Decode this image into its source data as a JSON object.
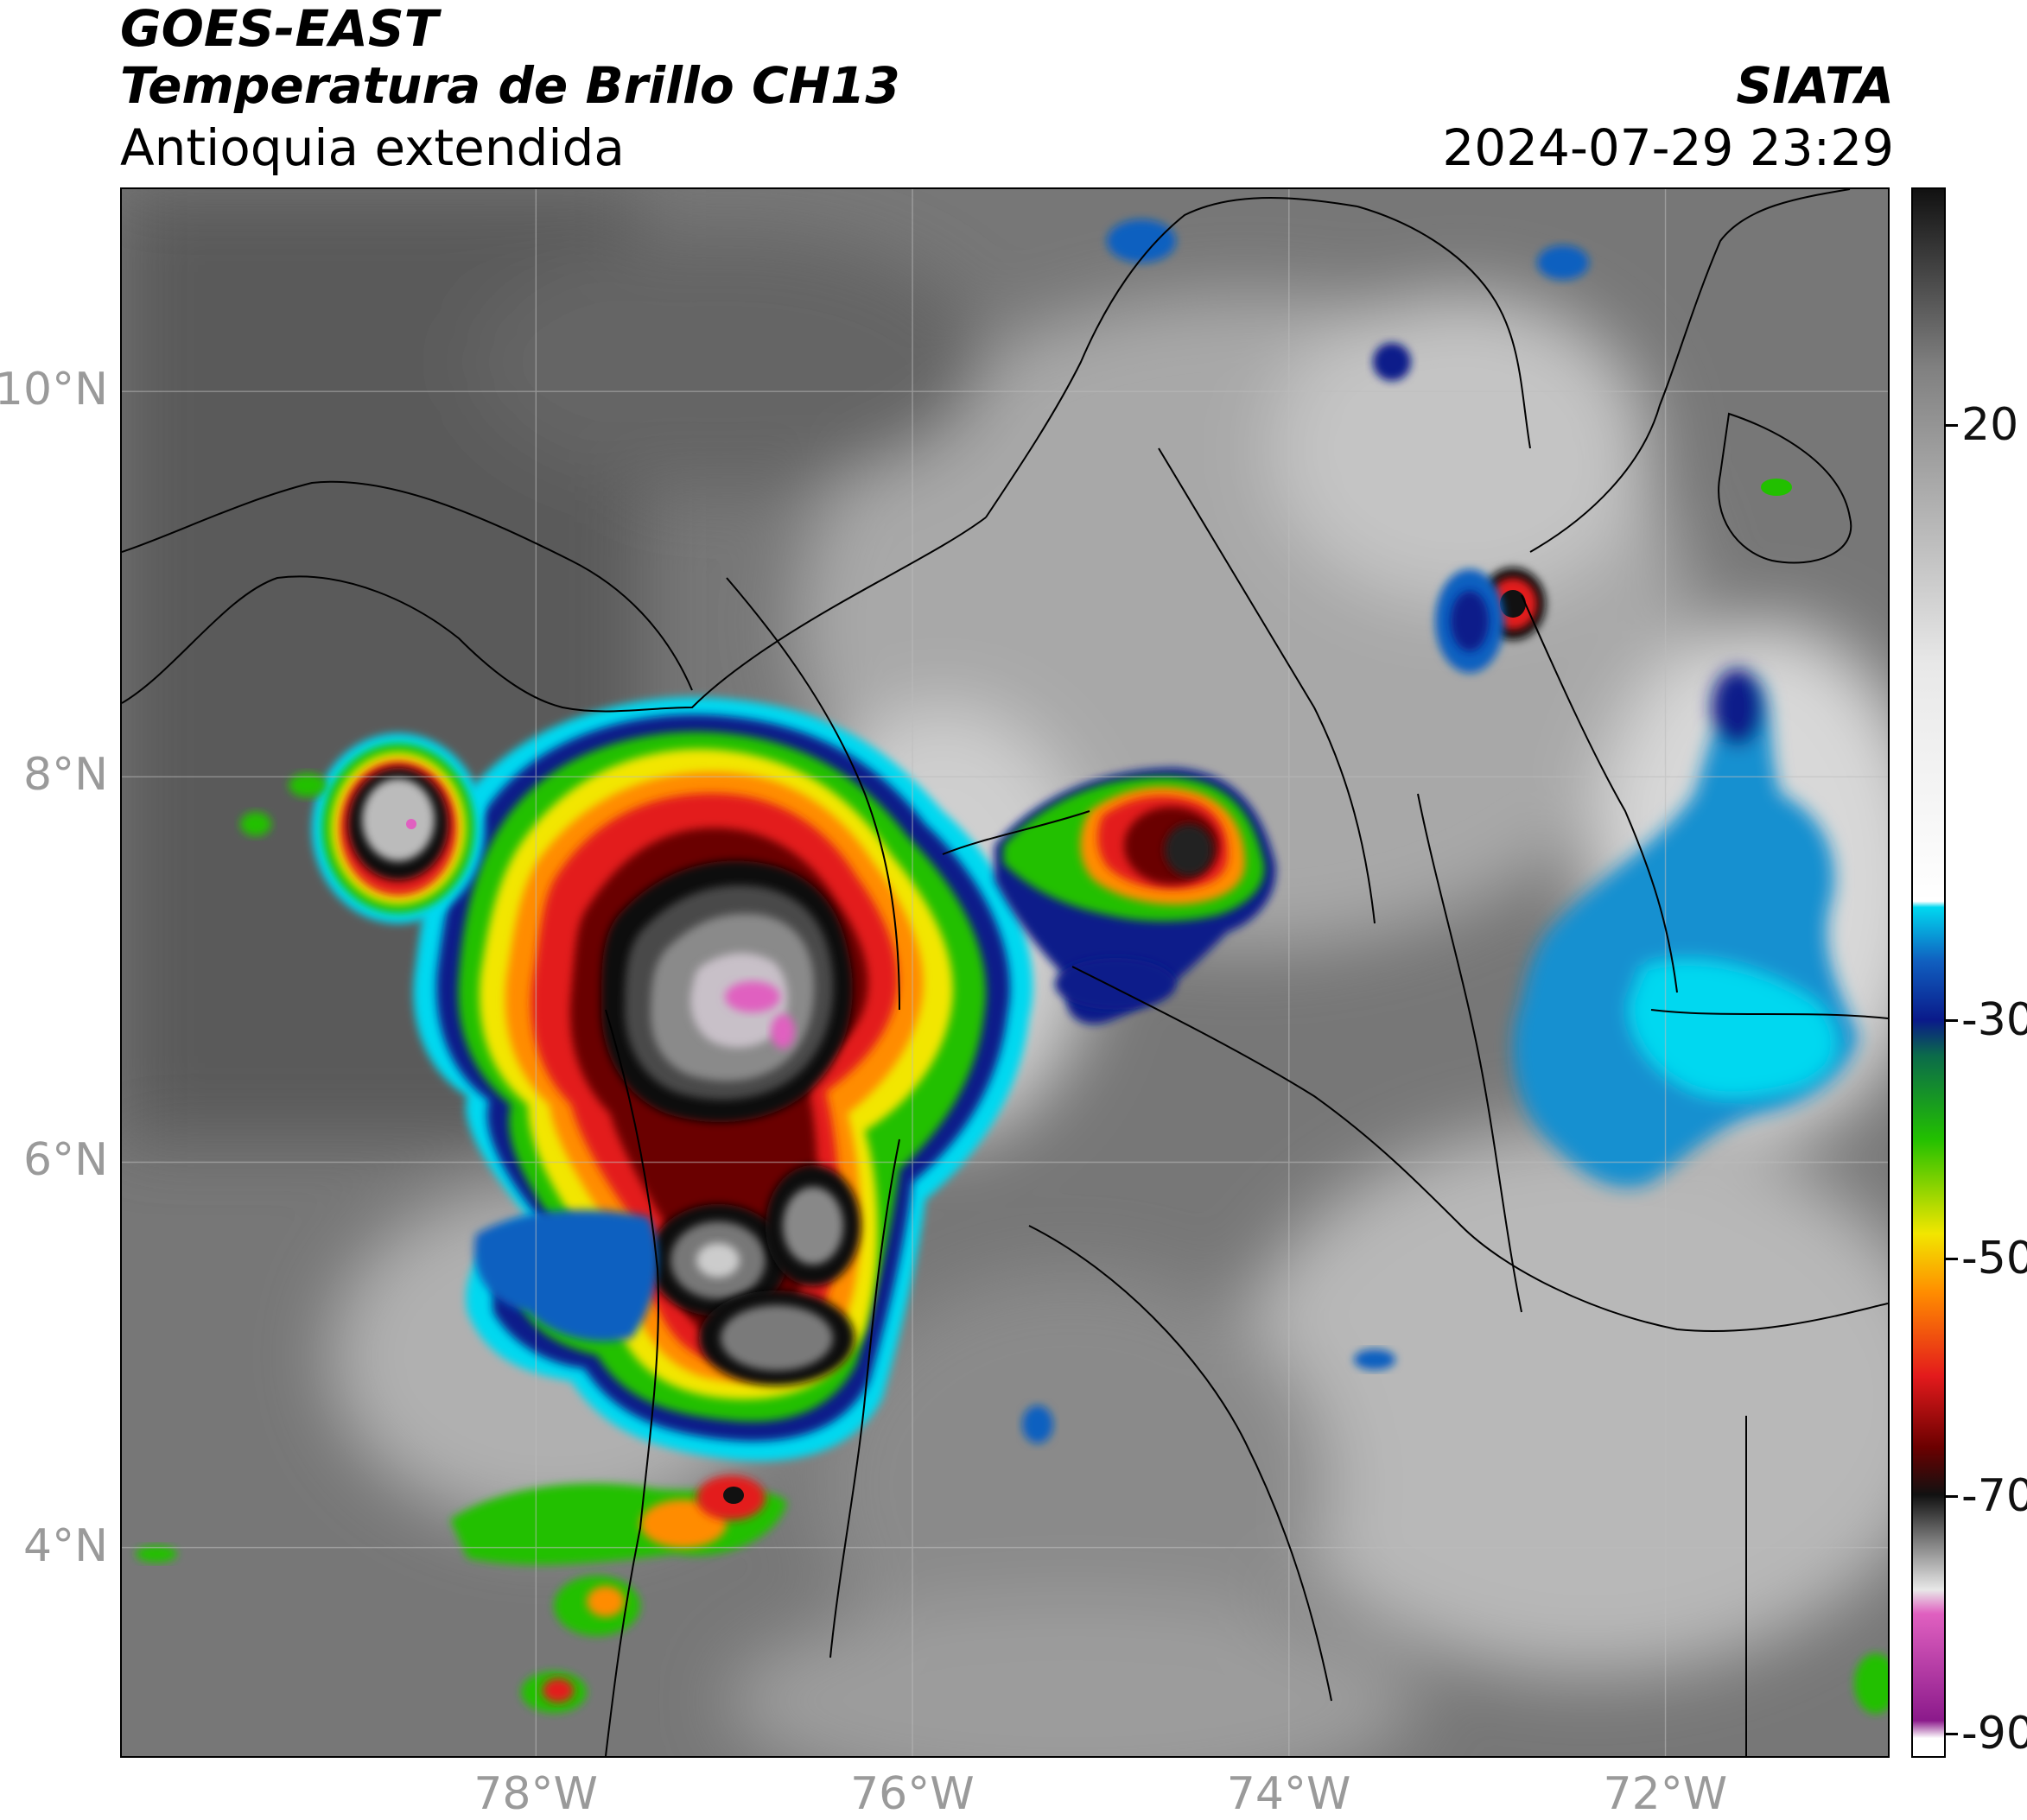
{
  "header": {
    "satellite": "GOES-EAST",
    "product": "Temperatura de Brillo CH13",
    "region": "Antioquia extendida",
    "agency": "SIATA",
    "datetime": "2024-07-29 23:29"
  },
  "map": {
    "lat_labels": [
      "10°N",
      "8°N",
      "6°N",
      "4°N"
    ],
    "lon_labels": [
      "78°W",
      "76°W",
      "74°W",
      "72°W"
    ],
    "lat_values": [
      10,
      8,
      6,
      4
    ],
    "lon_values": [
      -78,
      -76,
      -74,
      -72
    ],
    "extent": {
      "lon_min": -80.2,
      "lon_max": -70.8,
      "lat_min": 2.9,
      "lat_max": 11.05
    },
    "label_color": "#9a9a9a"
  },
  "colorbar": {
    "labels": [
      "20",
      "-30",
      "-50",
      "-70",
      "-90"
    ],
    "values": [
      20,
      -30,
      -50,
      -70,
      -90
    ],
    "range": [
      -92,
      40
    ],
    "colors": {
      "white": "#ffffff",
      "magenta": "#e060c0",
      "purple": "#8b1a8b",
      "black": "#111111",
      "dark_red": "#6b0000",
      "red": "#e31a1c",
      "orange": "#ff8c00",
      "yellow": "#f2e600",
      "green": "#22c000",
      "dark_green": "#0b6b4a",
      "navy": "#0a1a8a",
      "blue": "#1060c0",
      "cyan": "#00d8f0",
      "light_gray": "#e8e8e8",
      "gray": "#808080"
    }
  }
}
